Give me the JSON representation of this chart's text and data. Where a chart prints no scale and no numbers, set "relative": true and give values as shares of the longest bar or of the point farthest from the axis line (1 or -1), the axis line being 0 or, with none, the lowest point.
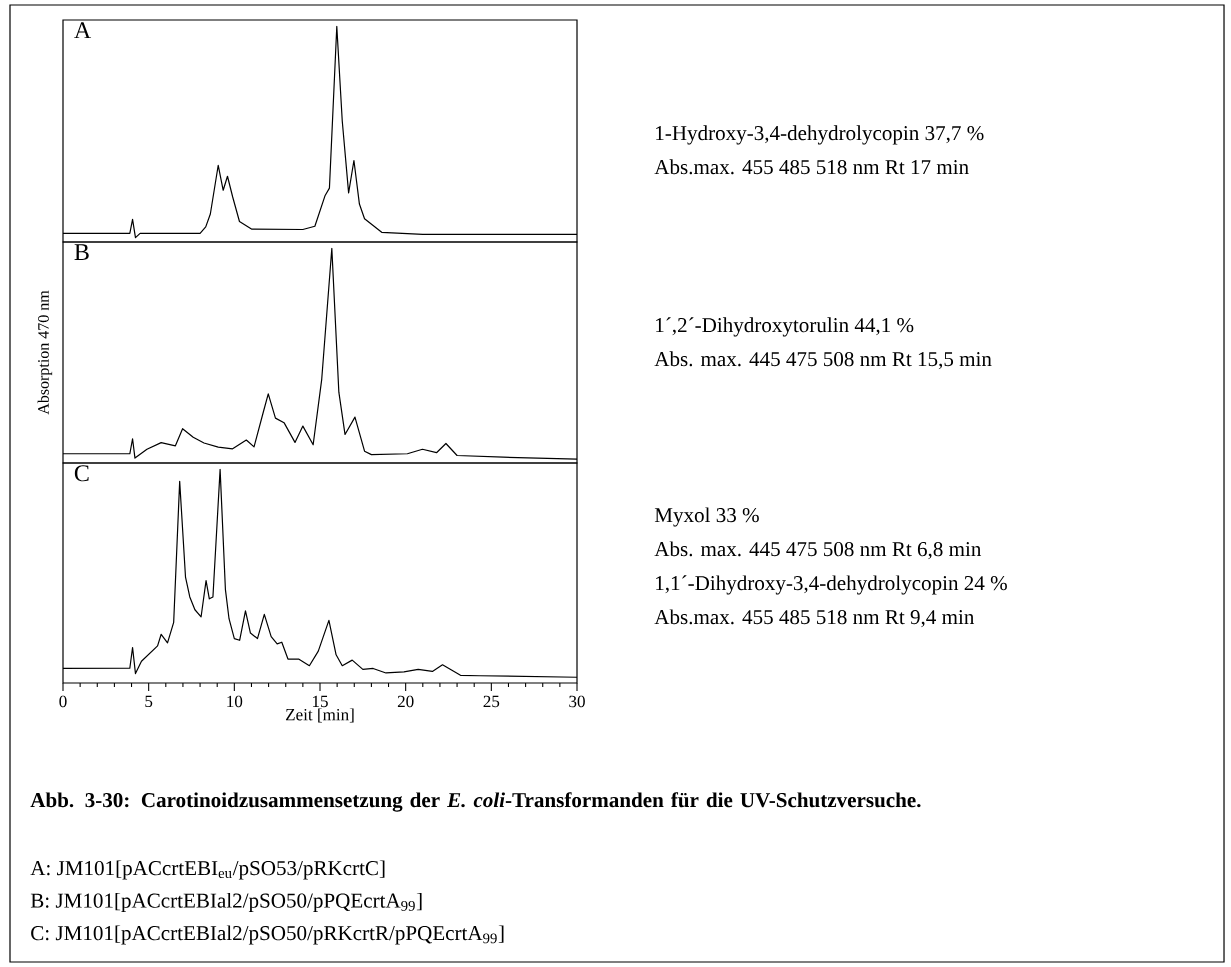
{
  "chart_data": [
    {
      "type": "line",
      "title": "A",
      "relative": true,
      "xlim": [
        0,
        30
      ],
      "tick_labels": false,
      "series": [
        {
          "color": "#000000",
          "x": [
            0,
            3.9,
            4.06,
            4.23,
            4.5,
            8,
            8.33,
            8.6,
            9.06,
            9.35,
            9.6,
            9.9,
            10.3,
            11,
            14,
            14.7,
            15.3,
            15.55,
            15.98,
            16.3,
            16.67,
            16.98,
            17.3,
            17.6,
            18.6,
            21,
            30
          ],
          "values": [
            0.04,
            0.04,
            0.105,
            0.02,
            0.04,
            0.04,
            0.07,
            0.13,
            0.356,
            0.24,
            0.305,
            0.21,
            0.095,
            0.06,
            0.058,
            0.073,
            0.216,
            0.25,
            1.0,
            0.56,
            0.228,
            0.378,
            0.176,
            0.108,
            0.045,
            0.035,
            0.035
          ]
        }
      ],
      "annotations": [
        "1-Hydroxy-3,4-dehydrolycopin 37,7 %",
        "Abs.max. 455 485 518 nm Rt 17 min"
      ]
    },
    {
      "type": "line",
      "title": "B",
      "ylabel": "Absorption  470 nm",
      "relative": true,
      "xlim": [
        0,
        30
      ],
      "tick_labels": false,
      "series": [
        {
          "color": "#000000",
          "x": [
            0,
            3.9,
            4.06,
            4.2,
            4.9,
            5.73,
            6.56,
            6.98,
            7.6,
            8.23,
            9.06,
            9.9,
            10.7,
            11.15,
            11.7,
            11.98,
            12.4,
            12.9,
            13.54,
            14.0,
            14.6,
            15.1,
            15.69,
            16.1,
            16.46,
            17.04,
            17.6,
            18.0,
            20.1,
            20.98,
            21.8,
            22.35,
            23,
            25.7,
            30
          ],
          "values": [
            0.043,
            0.043,
            0.113,
            0.023,
            0.064,
            0.095,
            0.08,
            0.16,
            0.12,
            0.093,
            0.074,
            0.066,
            0.107,
            0.075,
            0.24,
            0.322,
            0.209,
            0.188,
            0.096,
            0.172,
            0.085,
            0.39,
            1.0,
            0.33,
            0.133,
            0.214,
            0.055,
            0.039,
            0.043,
            0.064,
            0.048,
            0.091,
            0.035,
            0.027,
            0.018
          ]
        }
      ],
      "annotations": [
        "1´,2´-Dihydroxytorulin 44,1 %",
        "Abs. max. 445 475 508 nm Rt 15,5 min"
      ]
    },
    {
      "type": "line",
      "title": "C",
      "xlabel": "Zeit [min]",
      "relative": true,
      "xlim": [
        0,
        30
      ],
      "xticks": [
        0,
        5,
        10,
        15,
        20,
        25,
        30
      ],
      "tick_labels": "x",
      "series": [
        {
          "color": "#000000",
          "x": [
            0,
            3.9,
            4.06,
            4.23,
            4.58,
            5.52,
            5.73,
            6.1,
            6.46,
            6.81,
            7.15,
            7.4,
            7.7,
            8.06,
            8.35,
            8.54,
            8.75,
            9.17,
            9.48,
            9.69,
            10.0,
            10.31,
            10.65,
            10.94,
            11.35,
            11.75,
            12.15,
            12.5,
            12.77,
            13.13,
            13.75,
            14.38,
            14.9,
            15.52,
            15.94,
            16.3,
            16.88,
            17.5,
            18.1,
            18.85,
            19.9,
            20.73,
            21.56,
            22.15,
            23.2,
            24.3,
            30
          ],
          "values": [
            0.068,
            0.069,
            0.166,
            0.044,
            0.102,
            0.174,
            0.228,
            0.188,
            0.284,
            0.944,
            0.496,
            0.403,
            0.343,
            0.31,
            0.479,
            0.394,
            0.403,
            1.0,
            0.437,
            0.301,
            0.208,
            0.2,
            0.338,
            0.234,
            0.208,
            0.321,
            0.217,
            0.183,
            0.191,
            0.112,
            0.112,
            0.081,
            0.149,
            0.293,
            0.132,
            0.081,
            0.107,
            0.064,
            0.068,
            0.047,
            0.052,
            0.064,
            0.054,
            0.085,
            0.036,
            0.034,
            0.027
          ]
        }
      ],
      "annotations": [
        "Myxol 33 %",
        "Abs. max. 445 475 508 nm Rt 6,8 min",
        "1,1´-Dihydroxy-3,4-dehydrolycopin 24 %",
        "Abs.max. 455 485 518 nm Rt 9,4 min",
        "Abb. 3-30: Carotinoidzusammensetzung  der *E. coli*-Transformanden für die UV-Schutzversuche.",
        "A: JM101[pACcrtEBI$_{eu}$/pSO53/pRKcrtC]",
        "B: JM101[pACcrtEBIal2/pSO50/pPQEcrtA$_{99}$]",
        "C: JM101[pACcrtEBIal2/pSO50/pRKcrtR/pPQEcrtA$_{99}$]"
      ]
    }
  ]
}
